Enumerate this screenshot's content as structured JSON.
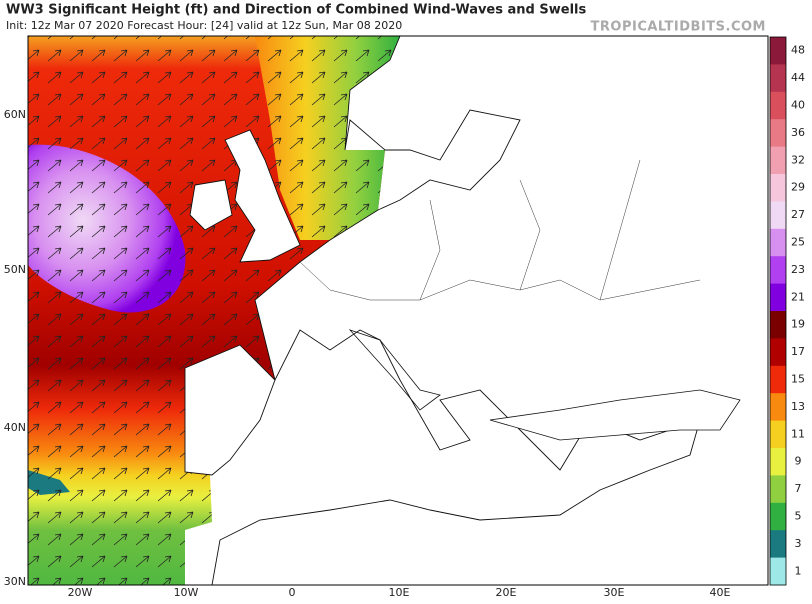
{
  "header": {
    "title": "WW3 Significant Height (ft) and Direction of Combined Wind-Waves and Swells",
    "subtitle": "Init: 12z Mar 07 2020   Forecast Hour: [24]   valid at 12z Sun, Mar 08 2020",
    "brand": "TROPICALTIDBITS.COM"
  },
  "map": {
    "latitude_labels": [
      "60N",
      "50N",
      "40N",
      "30N"
    ],
    "longitude_labels": [
      "20W",
      "10W",
      "0",
      "10E",
      "20E",
      "30E",
      "40E"
    ]
  },
  "colorbar": {
    "ticks": [
      48,
      44,
      40,
      36,
      32,
      29,
      27,
      25,
      23,
      21,
      19,
      17,
      15,
      13,
      11,
      9,
      7,
      5,
      3,
      1
    ],
    "colors": [
      "#8b1a3a",
      "#b5344f",
      "#d94f5c",
      "#e87a86",
      "#f0a0b0",
      "#f5c6dc",
      "#f0d9f5",
      "#d890f0",
      "#b040f0",
      "#8000e0",
      "#7a0000",
      "#b00000",
      "#ee2a0a",
      "#f88a10",
      "#f5d020",
      "#e8f040",
      "#90d040",
      "#30b040",
      "#1a7a80",
      "#9ee8e8"
    ]
  }
}
